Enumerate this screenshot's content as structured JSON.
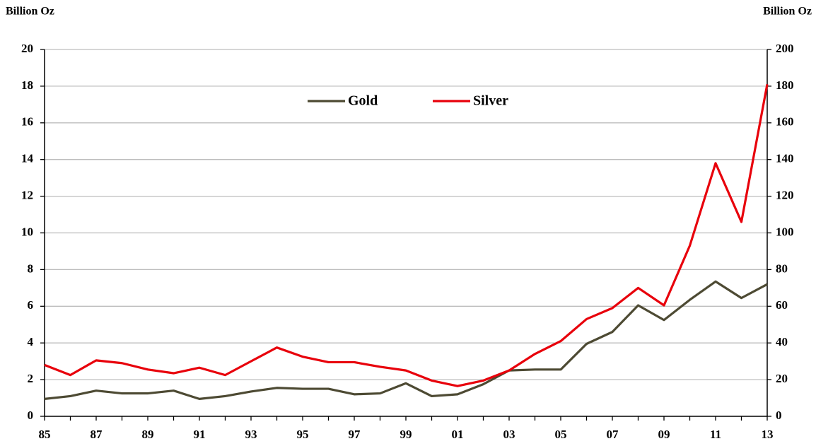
{
  "chart_data": {
    "type": "line",
    "ylabel": "Billion Oz",
    "y2label": "Billion Oz",
    "categories": [
      "85",
      null,
      "87",
      null,
      "89",
      null,
      "91",
      null,
      "93",
      null,
      "95",
      null,
      "97",
      null,
      "99",
      null,
      "01",
      null,
      "03",
      null,
      "05",
      null,
      "07",
      null,
      "09",
      null,
      "11",
      null,
      "13"
    ],
    "series": [
      {
        "name": "Gold",
        "color": "#4d4a33",
        "values": [
          0.95,
          1.1,
          1.4,
          1.25,
          1.25,
          1.4,
          0.95,
          1.1,
          1.35,
          1.55,
          1.5,
          1.5,
          1.2,
          1.25,
          1.8,
          1.1,
          1.2,
          1.75,
          2.5,
          2.55,
          2.55,
          3.95,
          4.6,
          6.05,
          5.25,
          6.35,
          7.35,
          6.45,
          7.2
        ]
      },
      {
        "name": "Silver",
        "color": "#e8000b",
        "axis": "y2",
        "values": [
          28,
          22.5,
          30.5,
          29,
          25.5,
          23.5,
          26.5,
          22.5,
          30,
          37.5,
          32.5,
          29.5,
          29.5,
          27,
          25,
          19.5,
          16.5,
          19.5,
          25,
          34,
          41,
          53,
          59,
          70,
          60.5,
          93,
          138,
          106,
          181
        ]
      }
    ],
    "ylim": [
      0,
      20
    ],
    "yticks": [
      0,
      2,
      4,
      6,
      8,
      10,
      12,
      14,
      16,
      18,
      20
    ],
    "y2lim": [
      0,
      200
    ],
    "y2ticks": [
      0,
      20,
      40,
      60,
      80,
      100,
      120,
      140,
      160,
      180,
      200
    ],
    "grid": true
  }
}
